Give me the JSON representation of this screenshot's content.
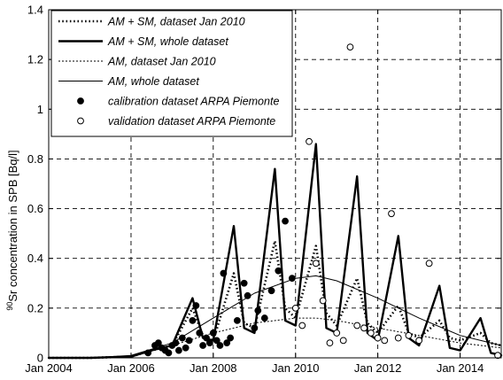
{
  "chart_data": {
    "type": "line",
    "title": "",
    "xlabel": "",
    "ylabel": "90Sr concentration in SPB [Bq/l]",
    "ylabel_superscript": "90",
    "ylabel_rest": "Sr concentration in SPB [Bq/l]",
    "xlim": [
      "2004-01-01",
      "2015-01-01"
    ],
    "ylim": [
      0,
      1.4
    ],
    "grid": true,
    "legend_position": "top-left",
    "x_ticks": [
      {
        "date": "2004-01-01",
        "label": "Jan 2004"
      },
      {
        "date": "2006-01-01",
        "label": "Jan 2006"
      },
      {
        "date": "2008-01-01",
        "label": "Jan 2008"
      },
      {
        "date": "2010-01-01",
        "label": "Jan 2010"
      },
      {
        "date": "2012-01-01",
        "label": "Jan 2012"
      },
      {
        "date": "2014-01-01",
        "label": "Jan 2014"
      }
    ],
    "y_ticks": [
      {
        "value": 0,
        "label": "0"
      },
      {
        "value": 0.2,
        "label": "0.2"
      },
      {
        "value": 0.4,
        "label": "0.4"
      },
      {
        "value": 0.6,
        "label": "0.6"
      },
      {
        "value": 0.8,
        "label": "0.8"
      },
      {
        "value": 1.0,
        "label": "1"
      },
      {
        "value": 1.2,
        "label": "1.2"
      },
      {
        "value": 1.4,
        "label": "1.4"
      }
    ],
    "series": [
      {
        "name": "AM + SM, dataset Jan 2010",
        "style": "thick-dotted",
        "x": [
          "2004-01-01",
          "2005-01-01",
          "2006-01-01",
          "2006-07-01",
          "2007-01-01",
          "2007-07-01",
          "2007-10-01",
          "2008-01-01",
          "2008-07-01",
          "2008-10-01",
          "2009-01-01",
          "2009-07-01",
          "2009-10-01",
          "2010-01-01",
          "2010-07-01",
          "2010-10-01",
          "2011-01-01",
          "2011-07-01",
          "2011-10-01",
          "2012-01-01",
          "2012-07-01",
          "2012-10-01",
          "2013-01-01",
          "2013-07-01",
          "2013-10-01",
          "2014-01-01",
          "2014-07-01",
          "2014-10-01",
          "2015-01-01"
        ],
        "y": [
          0,
          0,
          0.005,
          0.03,
          0.05,
          0.2,
          0.09,
          0.07,
          0.34,
          0.14,
          0.12,
          0.47,
          0.2,
          0.16,
          0.45,
          0.18,
          0.13,
          0.32,
          0.14,
          0.1,
          0.21,
          0.1,
          0.08,
          0.15,
          0.08,
          0.07,
          0.1,
          0.06,
          0.05
        ]
      },
      {
        "name": "AM + SM, whole dataset",
        "style": "thick-solid",
        "x": [
          "2004-01-01",
          "2005-01-01",
          "2006-01-01",
          "2006-07-01",
          "2007-01-01",
          "2007-07-01",
          "2007-10-01",
          "2008-01-01",
          "2008-07-01",
          "2008-10-01",
          "2009-01-01",
          "2009-07-01",
          "2009-10-01",
          "2010-01-01",
          "2010-07-01",
          "2010-10-01",
          "2011-01-01",
          "2011-07-01",
          "2011-10-01",
          "2012-01-01",
          "2012-07-01",
          "2012-10-01",
          "2013-01-01",
          "2013-07-01",
          "2013-10-01",
          "2014-01-01",
          "2014-07-01",
          "2014-10-01",
          "2015-01-01"
        ],
        "y": [
          0,
          0,
          0.005,
          0.03,
          0.05,
          0.24,
          0.08,
          0.07,
          0.53,
          0.12,
          0.1,
          0.76,
          0.15,
          0.13,
          0.86,
          0.12,
          0.1,
          0.73,
          0.1,
          0.07,
          0.49,
          0.08,
          0.05,
          0.29,
          0.04,
          0.03,
          0.16,
          0.02,
          0.01
        ]
      },
      {
        "name": "AM, dataset Jan 2010",
        "style": "thin-dotted",
        "x": [
          "2004-01-01",
          "2005-01-01",
          "2006-01-01",
          "2007-01-01",
          "2008-01-01",
          "2009-01-01",
          "2010-01-01",
          "2010-07-01",
          "2011-01-01",
          "2012-01-01",
          "2013-01-01",
          "2014-01-01",
          "2015-01-01"
        ],
        "y": [
          0,
          0,
          0.005,
          0.05,
          0.1,
          0.14,
          0.16,
          0.16,
          0.15,
          0.12,
          0.09,
          0.06,
          0.04
        ]
      },
      {
        "name": "AM, whole dataset",
        "style": "thin-solid",
        "x": [
          "2004-01-01",
          "2005-01-01",
          "2006-01-01",
          "2007-01-01",
          "2008-01-01",
          "2009-01-01",
          "2010-01-01",
          "2010-07-01",
          "2011-01-01",
          "2012-01-01",
          "2013-01-01",
          "2014-01-01",
          "2015-01-01"
        ],
        "y": [
          0,
          0,
          0.01,
          0.06,
          0.16,
          0.26,
          0.32,
          0.33,
          0.31,
          0.24,
          0.16,
          0.09,
          0.05
        ]
      },
      {
        "name": "calibration dataset ARPA Piemonte",
        "style": "filled-marker",
        "x": [
          "2006-06-01",
          "2006-08-01",
          "2006-09-01",
          "2006-10-01",
          "2006-11-01",
          "2006-12-01",
          "2007-01-01",
          "2007-02-01",
          "2007-03-01",
          "2007-04-01",
          "2007-05-01",
          "2007-06-01",
          "2007-07-01",
          "2007-08-01",
          "2007-09-01",
          "2007-10-01",
          "2007-11-01",
          "2007-12-01",
          "2008-01-01",
          "2008-02-01",
          "2008-03-01",
          "2008-04-01",
          "2008-05-01",
          "2008-06-01",
          "2008-08-01",
          "2008-10-01",
          "2008-11-01",
          "2009-01-01",
          "2009-02-01",
          "2009-04-01",
          "2009-06-01",
          "2009-08-01",
          "2009-10-01",
          "2009-12-01"
        ],
        "y": [
          0.02,
          0.05,
          0.06,
          0.04,
          0.03,
          0.02,
          0.05,
          0.06,
          0.03,
          0.08,
          0.04,
          0.07,
          0.15,
          0.21,
          0.1,
          0.05,
          0.08,
          0.06,
          0.1,
          0.07,
          0.05,
          0.34,
          0.06,
          0.08,
          0.15,
          0.3,
          0.25,
          0.12,
          0.19,
          0.16,
          0.27,
          0.35,
          0.55,
          0.32
        ]
      },
      {
        "name": "validation dataset ARPA Piemonte",
        "style": "open-marker",
        "x": [
          "2010-01-01",
          "2010-03-01",
          "2010-05-01",
          "2010-07-01",
          "2010-09-01",
          "2010-11-01",
          "2011-01-01",
          "2011-03-01",
          "2011-05-01",
          "2011-07-01",
          "2011-09-01",
          "2011-11-01",
          "2012-01-01",
          "2012-03-01",
          "2012-05-01",
          "2012-07-01",
          "2012-10-01",
          "2013-01-01",
          "2013-04-01",
          "2014-12-01"
        ],
        "y": [
          0.2,
          0.13,
          0.87,
          0.38,
          0.23,
          0.06,
          0.1,
          0.07,
          1.25,
          0.13,
          0.12,
          0.1,
          0.08,
          0.07,
          0.58,
          0.08,
          0.09,
          0.07,
          0.38,
          0.01
        ]
      }
    ]
  }
}
